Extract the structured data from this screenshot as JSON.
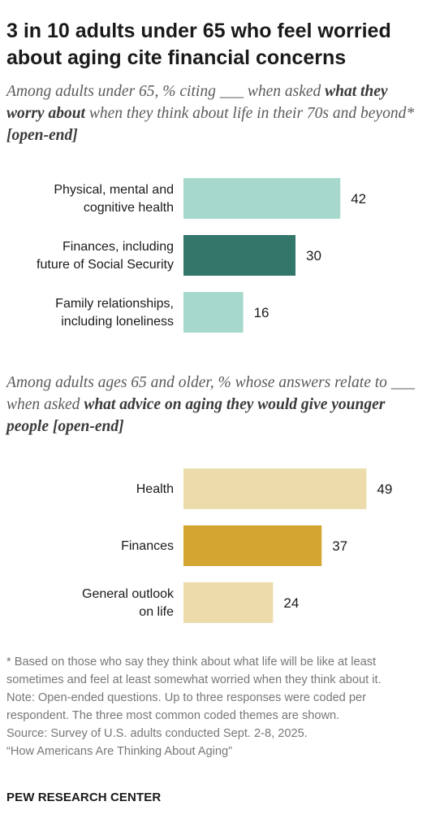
{
  "title": "3 in 10 adults under 65 who feel worried about aging cite financial concerns",
  "subtitle1": {
    "pre": "Among adults under 65, % citing ___ when asked ",
    "bold": "what they worry about",
    "post": " when they think about life in their 70s and beyond* ",
    "tag": "[open-end]"
  },
  "subtitle2": {
    "pre": "Among adults ages 65 and older, % whose answers relate to ___ when asked ",
    "bold": "what advice on aging they would give younger people [open-end]"
  },
  "footnotes": [
    "* Based on those who say they think about what life will be like at least sometimes and feel at least somewhat worried when they think about it.",
    "Note: Open-ended questions. Up to three responses were coded per respondent. The three most common coded themes are shown.",
    "Source: Survey of U.S. adults conducted Sept. 2-8, 2025.",
    "“How Americans Are Thinking About Aging”"
  ],
  "brand": "PEW RESEARCH CENTER",
  "chart_data": [
    {
      "type": "bar",
      "orientation": "horizontal",
      "categories": [
        [
          "Physical, mental and",
          "cognitive health"
        ],
        [
          "Finances, including",
          "future of Social Security"
        ],
        [
          "Family relationships,",
          "including loneliness"
        ]
      ],
      "values": [
        42,
        30,
        16
      ],
      "colors": [
        "#a6d8cb",
        "#33766a",
        "#a6d8cb"
      ],
      "xlim": [
        0,
        100
      ],
      "grid": false
    },
    {
      "type": "bar",
      "orientation": "horizontal",
      "categories": [
        [
          "Health"
        ],
        [
          "Finances"
        ],
        [
          "General outlook",
          "on life"
        ]
      ],
      "values": [
        49,
        37,
        24
      ],
      "colors": [
        "#ecdbab",
        "#d3a631",
        "#ecdbab"
      ],
      "xlim": [
        0,
        100
      ],
      "grid": false
    }
  ]
}
